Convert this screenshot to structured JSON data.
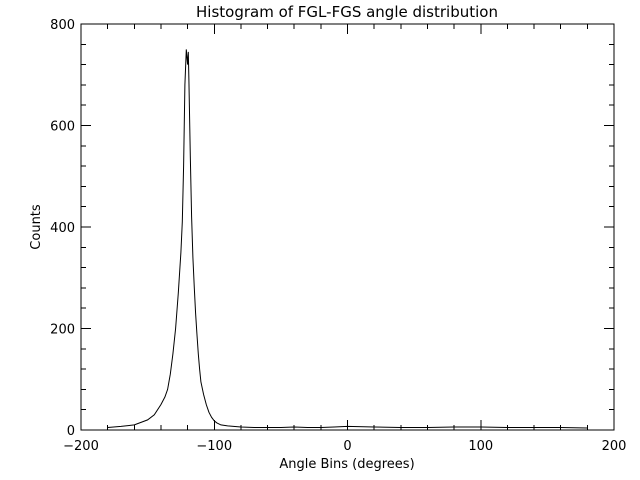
{
  "chart_data": {
    "type": "line",
    "title": "Histogram of FGL-FGS angle distribution",
    "xlabel": "Angle Bins (degrees)",
    "ylabel": "Counts",
    "xlim": [
      -200,
      200
    ],
    "ylim": [
      0,
      800
    ],
    "xticks": [
      -200,
      -100,
      0,
      100,
      200
    ],
    "yticks": [
      0,
      200,
      400,
      600,
      800
    ],
    "x_minor_step": 20,
    "y_minor_step": 40,
    "grid": false,
    "legend": "none",
    "series": [
      {
        "x": [
          -180,
          -170,
          -160,
          -155,
          -150,
          -145,
          -140,
          -137,
          -135,
          -133,
          -131,
          -129,
          -127,
          -125,
          -124,
          -123,
          -122,
          -121,
          -120,
          -119.5,
          -119,
          -118,
          -117,
          -116,
          -115,
          -114,
          -113,
          -112,
          -111,
          -110,
          -108,
          -106,
          -104,
          -102,
          -100,
          -98,
          -95,
          -90,
          -80,
          -70,
          -60,
          -50,
          -40,
          -30,
          -20,
          -10,
          0,
          20,
          40,
          60,
          80,
          100,
          120,
          140,
          160,
          180
        ],
        "values": [
          5,
          7,
          10,
          15,
          20,
          30,
          50,
          65,
          80,
          110,
          150,
          200,
          270,
          350,
          410,
          520,
          680,
          750,
          720,
          745,
          690,
          540,
          420,
          340,
          280,
          230,
          190,
          150,
          120,
          95,
          70,
          50,
          35,
          25,
          18,
          14,
          10,
          8,
          6,
          5,
          5,
          5,
          6,
          5,
          5,
          6,
          7,
          6,
          5,
          5,
          6,
          6,
          5,
          5,
          5,
          4
        ]
      }
    ]
  }
}
